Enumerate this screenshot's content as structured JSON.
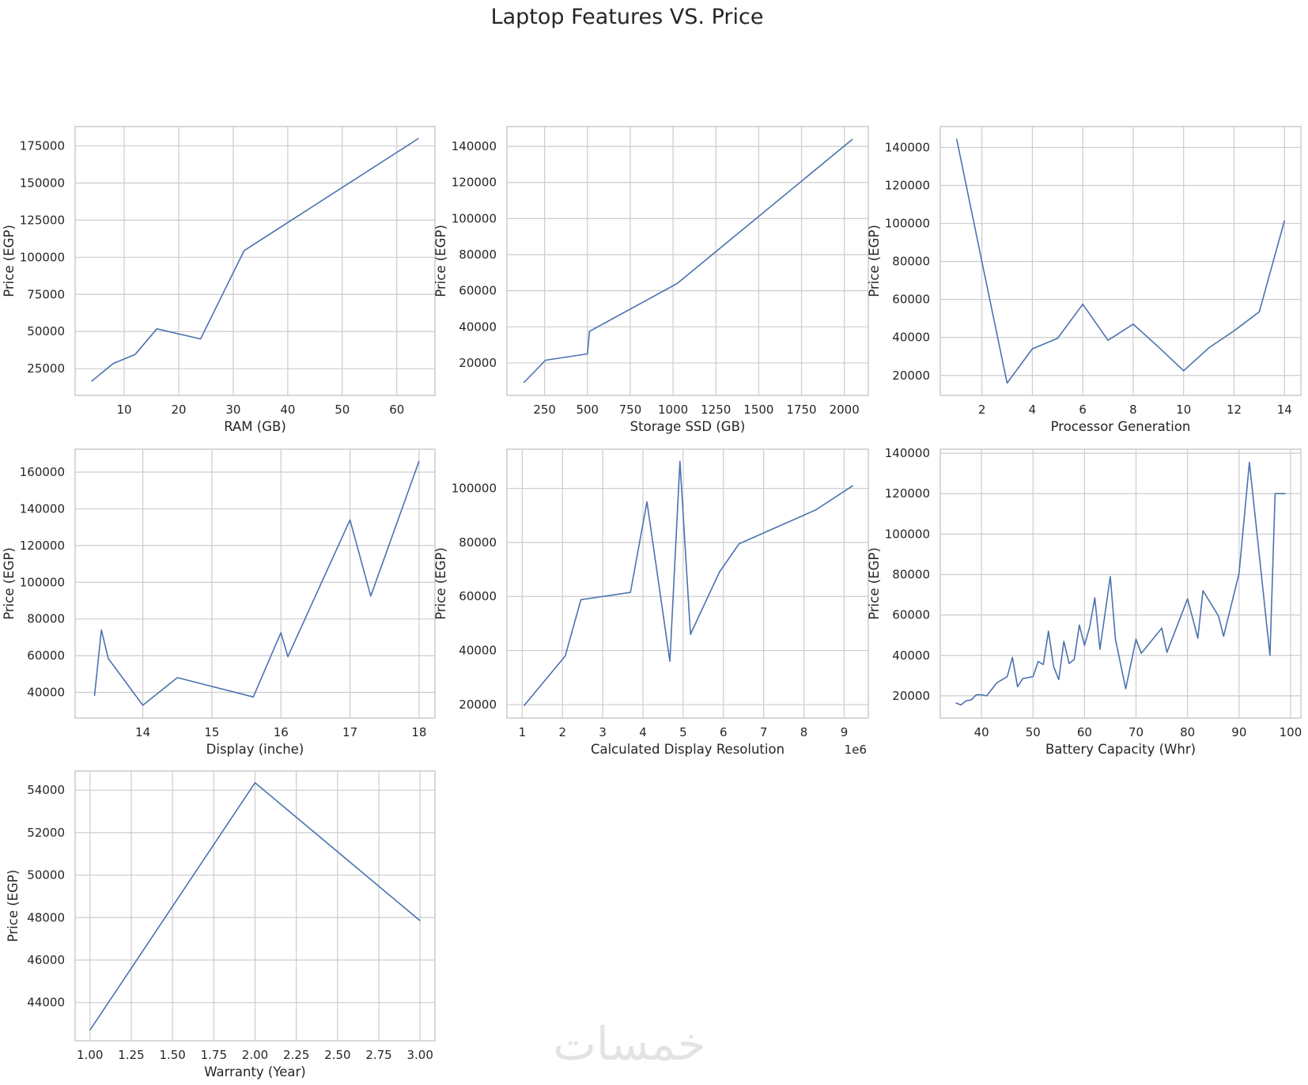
{
  "title": "Laptop Features VS. Price",
  "watermark": "خمسات",
  "colors": {
    "line": "#4c72b0",
    "grid": "#cccccc",
    "text": "#262626"
  },
  "chart_data": [
    {
      "type": "line",
      "xlabel": "RAM (GB)",
      "ylabel": "Price (EGP)",
      "grid": true,
      "xlim": [
        1,
        67
      ],
      "ylim": [
        7000,
        188000
      ],
      "xticks": [
        10,
        20,
        30,
        40,
        50,
        60
      ],
      "yticks": [
        25000,
        50000,
        75000,
        100000,
        125000,
        150000,
        175000
      ],
      "x": [
        4,
        8,
        12,
        16,
        24,
        32,
        64
      ],
      "y": [
        16500,
        28500,
        34500,
        51800,
        45000,
        104500,
        180000
      ]
    },
    {
      "type": "line",
      "xlabel": "Storage SSD (GB)",
      "ylabel": "Price (EGP)",
      "grid": true,
      "xlim": [
        30,
        2140
      ],
      "ylim": [
        2000,
        151000
      ],
      "xticks": [
        250,
        500,
        750,
        1000,
        1250,
        1500,
        1750,
        2000
      ],
      "yticks": [
        20000,
        40000,
        60000,
        80000,
        100000,
        120000,
        140000
      ],
      "x": [
        128,
        256,
        500,
        512,
        1024,
        2048
      ],
      "y": [
        9000,
        21500,
        25000,
        37500,
        64000,
        144000
      ]
    },
    {
      "type": "line",
      "xlabel": "Processor Generation",
      "ylabel": "Price (EGP)",
      "grid": true,
      "xlim": [
        0.35,
        14.65
      ],
      "ylim": [
        9500,
        151000
      ],
      "xticks": [
        2,
        4,
        6,
        8,
        10,
        12,
        14
      ],
      "yticks": [
        20000,
        40000,
        60000,
        80000,
        100000,
        120000,
        140000
      ],
      "x": [
        1,
        2,
        3,
        4,
        5,
        6,
        7,
        8,
        9,
        10,
        11,
        12,
        13,
        14
      ],
      "y": [
        144500,
        80000,
        16000,
        34000,
        39500,
        57500,
        38500,
        47000,
        35000,
        22500,
        34500,
        43500,
        53500,
        101500
      ]
    },
    {
      "type": "line",
      "xlabel": "Display (inche)",
      "ylabel": "Price (EGP)",
      "grid": true,
      "xlim": [
        13.02,
        18.23
      ],
      "ylim": [
        26000,
        172500
      ],
      "xticks": [
        14,
        15,
        16,
        17,
        18
      ],
      "yticks": [
        40000,
        60000,
        80000,
        100000,
        120000,
        140000,
        160000
      ],
      "x": [
        13.3,
        13.4,
        13.5,
        14,
        14.5,
        15.6,
        16,
        16.1,
        17,
        17.3,
        18
      ],
      "y": [
        38000,
        74000,
        58500,
        33000,
        48000,
        37500,
        72500,
        59500,
        134000,
        92500,
        166000
      ]
    },
    {
      "type": "line",
      "xlabel": "Calculated Display Resolution",
      "ylabel": "Price (EGP)",
      "grid": true,
      "offset_text": "1e6",
      "xlim": [
        0.62,
        9.6
      ],
      "ylim": [
        15000,
        114500
      ],
      "xticks": [
        1,
        2,
        3,
        4,
        5,
        6,
        7,
        8,
        9
      ],
      "yticks": [
        20000,
        40000,
        60000,
        80000,
        100000
      ],
      "x": [
        1.04,
        2.07,
        2.46,
        3.69,
        4.1,
        4.67,
        4.92,
        5.18,
        5.9,
        6.39,
        8.29,
        9.22
      ],
      "y": [
        19500,
        38000,
        58800,
        61500,
        95000,
        36000,
        110000,
        46000,
        69000,
        79500,
        92000,
        101000
      ]
    },
    {
      "type": "line",
      "xlabel": "Battery Capacity (Whr)",
      "ylabel": "Price (EGP)",
      "grid": true,
      "xlim": [
        32,
        102
      ],
      "ylim": [
        9000,
        142000
      ],
      "xticks": [
        40,
        50,
        60,
        70,
        80,
        90,
        100
      ],
      "yticks": [
        20000,
        40000,
        60000,
        80000,
        100000,
        120000,
        140000
      ],
      "x": [
        35,
        36,
        37,
        38,
        39,
        40,
        41,
        43,
        45,
        46,
        47,
        48,
        50,
        51,
        52,
        53,
        54,
        55,
        56,
        57,
        58,
        59,
        60,
        61,
        62,
        63,
        65,
        66,
        68,
        70,
        71,
        75,
        76,
        80,
        82,
        83,
        86,
        87,
        90,
        92,
        96,
        97,
        99
      ],
      "y": [
        16500,
        15500,
        17500,
        18000,
        20500,
        20500,
        20000,
        26500,
        29500,
        39000,
        24500,
        28500,
        29500,
        37000,
        35500,
        52000,
        34500,
        28000,
        47000,
        36000,
        38000,
        55000,
        45000,
        54000,
        68500,
        43000,
        79000,
        48000,
        23500,
        48000,
        41000,
        53500,
        41500,
        68000,
        48500,
        72000,
        59500,
        49500,
        80500,
        135500,
        40000,
        120000,
        120000
      ]
    },
    {
      "type": "line",
      "xlabel": "Warranty (Year)",
      "ylabel": "Price (EGP)",
      "grid": true,
      "xlim": [
        0.91,
        3.09
      ],
      "ylim": [
        42200,
        54900
      ],
      "xticks": [
        1.0,
        1.25,
        1.5,
        1.75,
        2.0,
        2.25,
        2.5,
        2.75,
        3.0
      ],
      "yticks": [
        44000,
        46000,
        48000,
        50000,
        52000,
        54000
      ],
      "x": [
        1,
        2,
        3
      ],
      "y": [
        42700,
        54350,
        47850
      ]
    }
  ]
}
